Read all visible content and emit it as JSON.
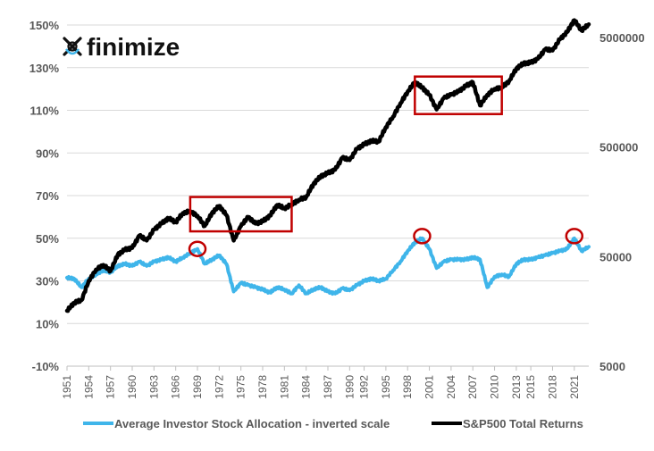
{
  "brand": {
    "name": "finimize",
    "logo_icon": "finimize-logo-icon"
  },
  "chart_data": {
    "type": "line",
    "title": "",
    "xlabel": "",
    "ylabel": "",
    "grid": "horizontal",
    "legend_position": "bottom",
    "colors": {
      "allocation": "#3fb5ea",
      "sp500": "#000000",
      "annotation": "#c00000",
      "grid": "#d9d9d9"
    },
    "left_axis": {
      "min": -10,
      "max": 150,
      "step": 20,
      "ticks": [
        "-10%",
        "10%",
        "30%",
        "50%",
        "70%",
        "90%",
        "110%",
        "130%",
        "150%"
      ]
    },
    "right_axis": {
      "scale": "log",
      "ticks": [
        {
          "value": 5000,
          "label": "5000"
        },
        {
          "value": 50000,
          "label": "50000"
        },
        {
          "value": 500000,
          "label": "500000"
        },
        {
          "value": 5000000,
          "label": "5000000"
        }
      ],
      "range": [
        5000,
        6500000
      ]
    },
    "x_axis": {
      "min": 1951,
      "max": 2023,
      "ticks": [
        "1951",
        "1954",
        "1957",
        "1960",
        "1963",
        "1966",
        "1969",
        "1972",
        "1975",
        "1978",
        "1981",
        "1984",
        "1987",
        "1990",
        "1992",
        "1995",
        "1998",
        "2001",
        "2004",
        "2007",
        "2010",
        "2013",
        "2015",
        "2018",
        "2021"
      ]
    },
    "series": [
      {
        "key": "allocation",
        "name": "Average Investor Stock Allocation - inverted scale",
        "axis": "left",
        "points": [
          [
            1951,
            31.5
          ],
          [
            1952,
            31
          ],
          [
            1953,
            27
          ],
          [
            1954,
            31
          ],
          [
            1955,
            33
          ],
          [
            1956,
            35
          ],
          [
            1957,
            34
          ],
          [
            1958,
            37
          ],
          [
            1959,
            38
          ],
          [
            1960,
            37
          ],
          [
            1961,
            39
          ],
          [
            1962,
            37
          ],
          [
            1963,
            39
          ],
          [
            1964,
            40
          ],
          [
            1965,
            41
          ],
          [
            1966,
            39
          ],
          [
            1967,
            41
          ],
          [
            1968,
            43
          ],
          [
            1969,
            45
          ],
          [
            1970,
            38
          ],
          [
            1971,
            40
          ],
          [
            1972,
            42
          ],
          [
            1973,
            38
          ],
          [
            1974,
            25
          ],
          [
            1975,
            29
          ],
          [
            1976,
            28
          ],
          [
            1977,
            27
          ],
          [
            1978,
            26
          ],
          [
            1979,
            24.5
          ],
          [
            1980,
            27
          ],
          [
            1981,
            26
          ],
          [
            1982,
            24
          ],
          [
            1983,
            28
          ],
          [
            1984,
            24
          ],
          [
            1985,
            26
          ],
          [
            1986,
            27
          ],
          [
            1987,
            25
          ],
          [
            1988,
            24
          ],
          [
            1989,
            26.5
          ],
          [
            1990,
            25.5
          ],
          [
            1991,
            28
          ],
          [
            1992,
            30
          ],
          [
            1993,
            31
          ],
          [
            1994,
            30
          ],
          [
            1995,
            31
          ],
          [
            1996,
            35
          ],
          [
            1997,
            39
          ],
          [
            1998,
            44
          ],
          [
            1999,
            48
          ],
          [
            2000,
            50
          ],
          [
            2001,
            45
          ],
          [
            2002,
            36
          ],
          [
            2003,
            39
          ],
          [
            2004,
            40
          ],
          [
            2005,
            40
          ],
          [
            2006,
            40
          ],
          [
            2007,
            41
          ],
          [
            2008,
            40
          ],
          [
            2009,
            27
          ],
          [
            2010,
            32
          ],
          [
            2011,
            33
          ],
          [
            2012,
            32
          ],
          [
            2013,
            38
          ],
          [
            2014,
            40
          ],
          [
            2015,
            40
          ],
          [
            2016,
            41
          ],
          [
            2017,
            42
          ],
          [
            2018,
            43
          ],
          [
            2019,
            44
          ],
          [
            2020,
            45
          ],
          [
            2021,
            50
          ],
          [
            2022,
            44
          ],
          [
            2023,
            46
          ]
        ]
      },
      {
        "key": "sp500",
        "name": "S&P500 Total Returns",
        "axis": "right",
        "points": [
          [
            1951,
            16000
          ],
          [
            1952,
            19000
          ],
          [
            1953,
            20000
          ],
          [
            1954,
            30000
          ],
          [
            1955,
            38000
          ],
          [
            1956,
            42000
          ],
          [
            1957,
            37000
          ],
          [
            1958,
            52000
          ],
          [
            1959,
            58000
          ],
          [
            1960,
            60000
          ],
          [
            1961,
            78000
          ],
          [
            1962,
            70000
          ],
          [
            1963,
            88000
          ],
          [
            1964,
            100000
          ],
          [
            1965,
            112000
          ],
          [
            1966,
            103000
          ],
          [
            1967,
            125000
          ],
          [
            1968,
            130000
          ],
          [
            1969,
            118000
          ],
          [
            1970,
            95000
          ],
          [
            1971,
            125000
          ],
          [
            1972,
            145000
          ],
          [
            1973,
            120000
          ],
          [
            1974,
            70000
          ],
          [
            1975,
            95000
          ],
          [
            1976,
            115000
          ],
          [
            1977,
            100000
          ],
          [
            1978,
            105000
          ],
          [
            1979,
            118000
          ],
          [
            1980,
            148000
          ],
          [
            1981,
            138000
          ],
          [
            1982,
            150000
          ],
          [
            1983,
            165000
          ],
          [
            1984,
            175000
          ],
          [
            1985,
            230000
          ],
          [
            1986,
            270000
          ],
          [
            1987,
            290000
          ],
          [
            1988,
            310000
          ],
          [
            1989,
            400000
          ],
          [
            1990,
            380000
          ],
          [
            1991,
            480000
          ],
          [
            1992,
            530000
          ],
          [
            1993,
            570000
          ],
          [
            1994,
            560000
          ],
          [
            1995,
            760000
          ],
          [
            1996,
            950000
          ],
          [
            1997,
            1250000
          ],
          [
            1998,
            1600000
          ],
          [
            1999,
            1950000
          ],
          [
            2000,
            1750000
          ],
          [
            2001,
            1500000
          ],
          [
            2002,
            1100000
          ],
          [
            2003,
            1400000
          ],
          [
            2004,
            1500000
          ],
          [
            2005,
            1600000
          ],
          [
            2006,
            1800000
          ],
          [
            2007,
            1950000
          ],
          [
            2008,
            1200000
          ],
          [
            2009,
            1500000
          ],
          [
            2010,
            1700000
          ],
          [
            2011,
            1750000
          ],
          [
            2012,
            2000000
          ],
          [
            2013,
            2600000
          ],
          [
            2014,
            2900000
          ],
          [
            2015,
            2950000
          ],
          [
            2016,
            3200000
          ],
          [
            2017,
            3900000
          ],
          [
            2018,
            3800000
          ],
          [
            2019,
            4800000
          ],
          [
            2020,
            5600000
          ],
          [
            2021,
            7200000
          ],
          [
            2022,
            5800000
          ],
          [
            2023,
            6600000
          ]
        ]
      }
    ],
    "annotations": {
      "boxes": [
        {
          "x0": 1968,
          "x1": 1982,
          "y0": 175000,
          "y1": 85000
        },
        {
          "x0": 1999,
          "x1": 2011,
          "y0": 2200000,
          "y1": 1000000
        }
      ],
      "circles": [
        {
          "x": 1969,
          "y": 45
        },
        {
          "x": 2000,
          "y": 51
        },
        {
          "x": 2021,
          "y": 51
        }
      ]
    }
  }
}
